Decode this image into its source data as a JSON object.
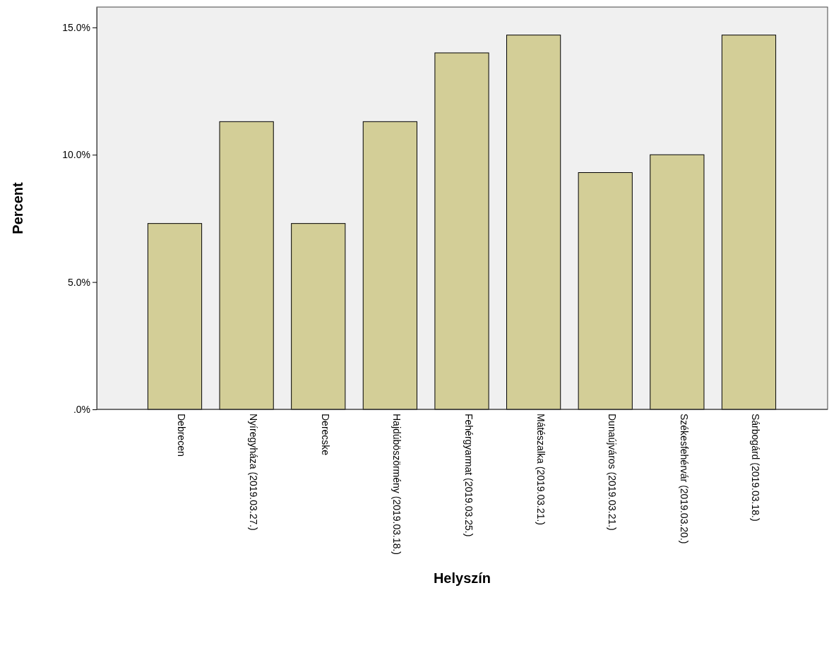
{
  "chart_data": {
    "type": "bar",
    "xlabel": "Helyszín",
    "ylabel": "Percent",
    "categories": [
      "Debrecen",
      "Nyíregyháza (2019.03.27.)",
      "Derecske",
      "Hajdúböszörmény (2019.03.18.)",
      "Fehérgyarmat (2019.03.25.)",
      "Mátészalka (2019.03.21.)",
      "Dunaújváros (2019.03.21.)",
      "Székesfehérvár (2019.03.20.)",
      "Sárbogárd (2019.03.18.)"
    ],
    "values": [
      7.3,
      11.3,
      7.3,
      11.3,
      14.0,
      14.7,
      9.3,
      10.0,
      14.7
    ],
    "color": "#d3ce97",
    "ylim": [
      0,
      15.8
    ],
    "yticks": [
      {
        "value": 0,
        "label": ".0%"
      },
      {
        "value": 5,
        "label": "5.0%"
      },
      {
        "value": 10,
        "label": "10.0%"
      },
      {
        "value": 15,
        "label": "15.0%"
      }
    ],
    "grid": false
  }
}
